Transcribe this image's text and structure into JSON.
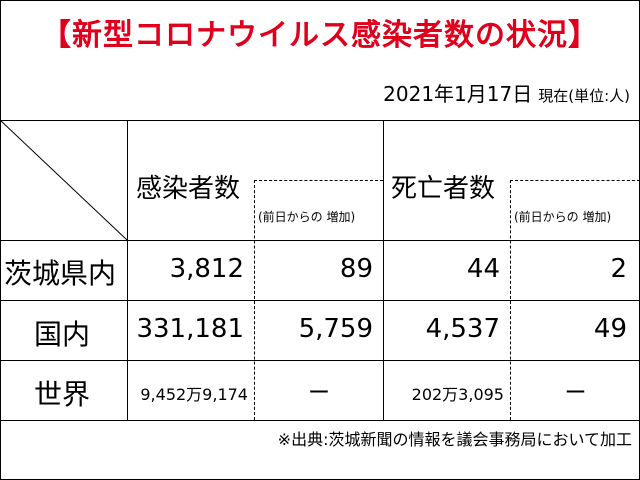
{
  "title": "【新型コロナウイルス感染者数の状況】",
  "date": {
    "value": "2021年1月17日",
    "note": "現在(単位:人)"
  },
  "headers": {
    "infected": "感染者数",
    "infected_increase": "(前日からの 増加)",
    "deaths": "死亡者数",
    "deaths_increase": "(前日からの 増加)"
  },
  "rows": [
    {
      "label": "茨城県内",
      "infected": "3,812",
      "infected_inc": "89",
      "deaths": "44",
      "deaths_inc": "2"
    },
    {
      "label": "国内",
      "infected": "331,181",
      "infected_inc": "5,759",
      "deaths": "4,537",
      "deaths_inc": "49"
    },
    {
      "label": "世界",
      "infected": "9,452万9,174",
      "infected_inc": "ー",
      "deaths": "202万3,095",
      "deaths_inc": "ー"
    }
  ],
  "source": "※出典:茨城新聞の情報を議会事務局において加工"
}
